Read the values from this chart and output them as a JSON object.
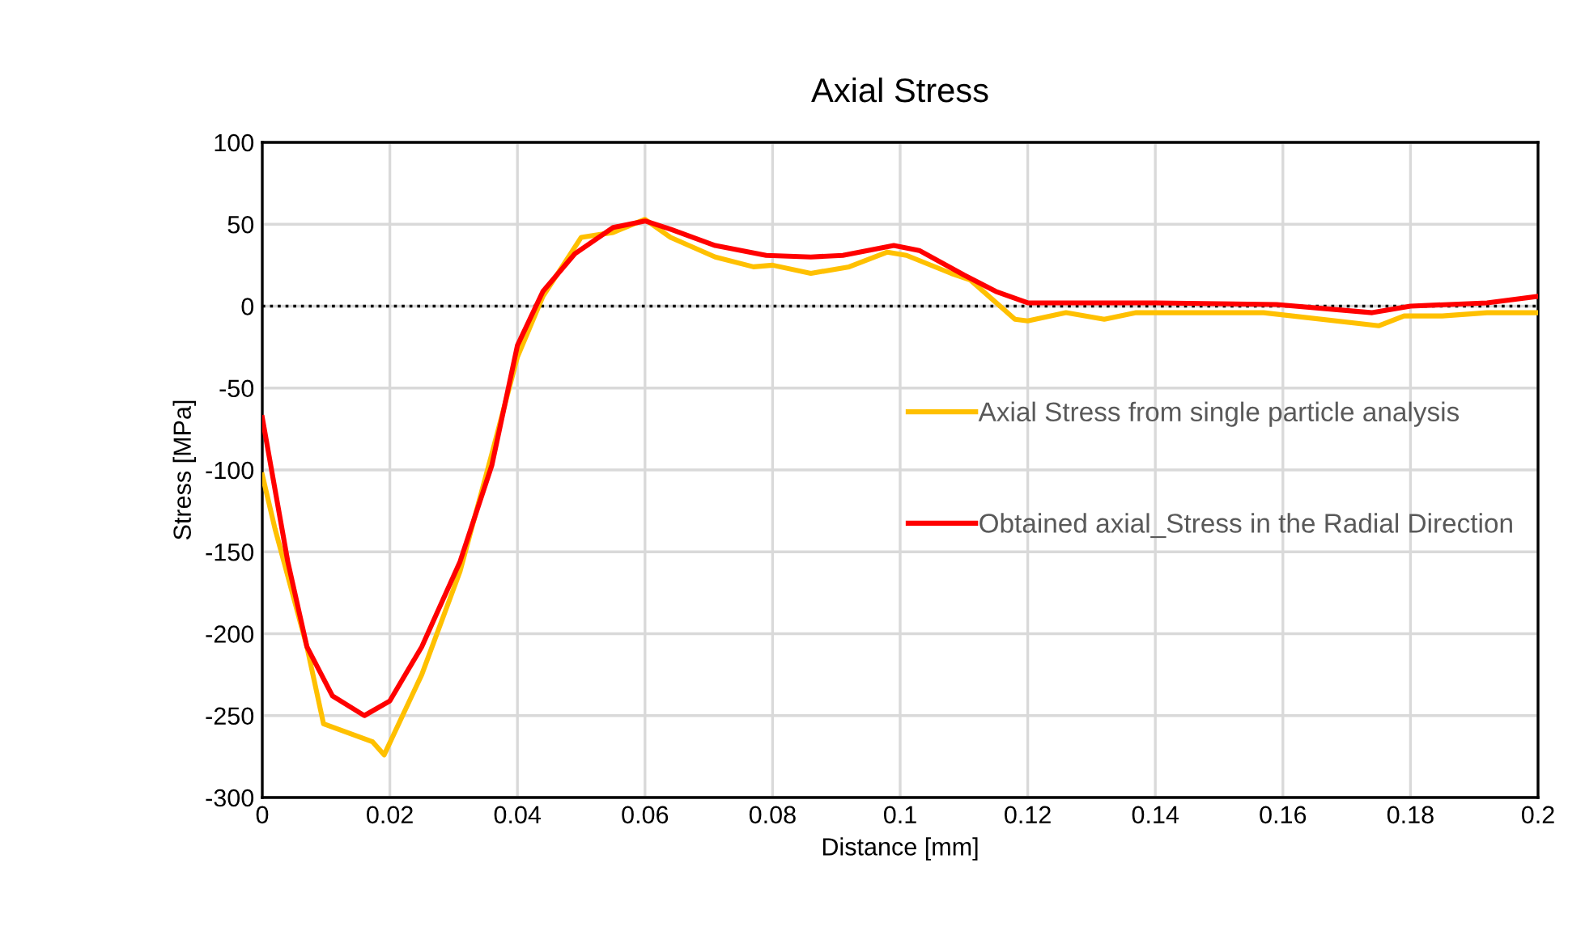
{
  "chart_data": {
    "type": "line",
    "title": "Axial Stress",
    "xlabel": "Distance [mm]",
    "ylabel": "Stress [MPa]",
    "xlim": [
      0,
      0.2
    ],
    "xticks": [
      0,
      0.02,
      0.04,
      0.06,
      0.08,
      0.1,
      0.12,
      0.14,
      0.16,
      0.18,
      0.2
    ],
    "ylim": [
      -300,
      100
    ],
    "yticks": [
      -300,
      -250,
      -200,
      -150,
      -100,
      -50,
      0,
      50,
      100
    ],
    "grid": true,
    "legend": "right",
    "marker": "none",
    "line_style": "solid",
    "ref_lines": [
      {
        "axis": "y",
        "value": 0,
        "color": "#000000",
        "line_style": "dotted"
      }
    ],
    "series": [
      {
        "name": "Axial Stress from single particle analysis",
        "color": "#ffc000",
        "x": [
          0,
          0.002,
          0.007,
          0.0096,
          0.0173,
          0.0191,
          0.025,
          0.031,
          0.036,
          0.04,
          0.044,
          0.05,
          0.055,
          0.06,
          0.064,
          0.071,
          0.077,
          0.08,
          0.086,
          0.092,
          0.098,
          0.101,
          0.108,
          0.111,
          0.118,
          0.12,
          0.126,
          0.132,
          0.137,
          0.157,
          0.175,
          0.179,
          0.185,
          0.192,
          0.2
        ],
        "values": [
          -103,
          -136,
          -208,
          -255,
          -266,
          -274,
          -225,
          -162,
          -90,
          -31,
          6,
          42,
          45,
          53,
          42,
          30,
          24,
          25,
          20,
          24,
          33,
          31,
          20,
          16,
          -8,
          -9,
          -4,
          -8,
          -4,
          -4,
          -12,
          -6,
          -6,
          -4,
          -4
        ]
      },
      {
        "name": "Obtained axial_Stress in the Radial Direction",
        "color": "#ff0000",
        "x": [
          0,
          0.004,
          0.007,
          0.011,
          0.016,
          0.02,
          0.025,
          0.031,
          0.036,
          0.04,
          0.044,
          0.049,
          0.055,
          0.06,
          0.064,
          0.071,
          0.079,
          0.086,
          0.091,
          0.099,
          0.103,
          0.11,
          0.115,
          0.12,
          0.14,
          0.159,
          0.174,
          0.18,
          0.192,
          0.2
        ],
        "values": [
          -68,
          -156,
          -208,
          -238,
          -250,
          -241,
          -208,
          -156,
          -97,
          -24,
          9,
          32,
          48,
          52,
          47,
          37,
          31,
          30,
          31,
          37,
          34,
          19,
          9,
          2,
          2,
          1,
          -4,
          0,
          2,
          6
        ]
      }
    ]
  }
}
